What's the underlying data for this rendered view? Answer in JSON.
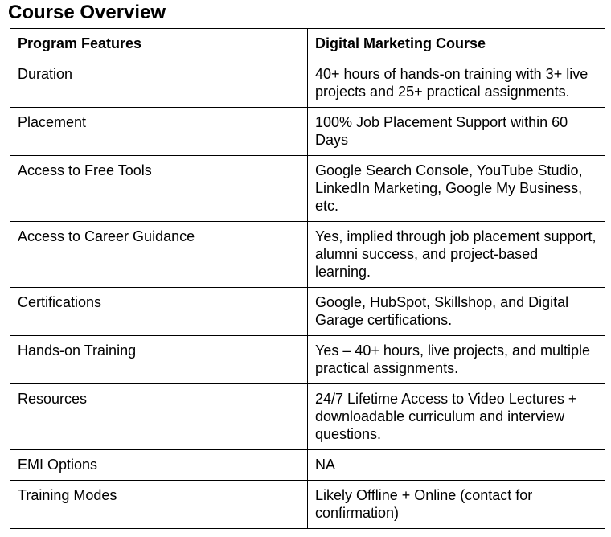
{
  "page": {
    "title": "Course Overview"
  },
  "colors": {
    "background": "#ffffff",
    "text": "#000000",
    "border": "#000000"
  },
  "table": {
    "columns": {
      "feature": "Program Features",
      "course": "Digital Marketing Course"
    },
    "rows": [
      {
        "feature": "Duration",
        "value": "40+ hours of hands-on training with 3+ live\nprojects and 25+ practical assignments."
      },
      {
        "feature": "Placement",
        "value": "100% Job Placement Support within 60\nDays"
      },
      {
        "feature": "Access to Free Tools",
        "value": "Google Search Console, YouTube Studio,\nLinkedIn Marketing, Google My Business,\netc."
      },
      {
        "feature": "Access to Career Guidance",
        "value": "Yes, implied through job placement support,\nalumni success, and project-based\nlearning."
      },
      {
        "feature": "Certifications",
        "value": "Google, HubSpot, Skillshop, and Digital\nGarage certifications."
      },
      {
        "feature": "Hands-on Training",
        "value": "Yes – 40+ hours, live projects, and multiple\npractical assignments."
      },
      {
        "feature": "Resources",
        "value": "24/7 Lifetime Access to Video Lectures +\ndownloadable curriculum and interview\nquestions."
      },
      {
        "feature": "EMI Options",
        "value": "NA"
      },
      {
        "feature": "Training Modes",
        "value": "Likely Offline + Online (contact for\nconfirmation)"
      }
    ]
  }
}
